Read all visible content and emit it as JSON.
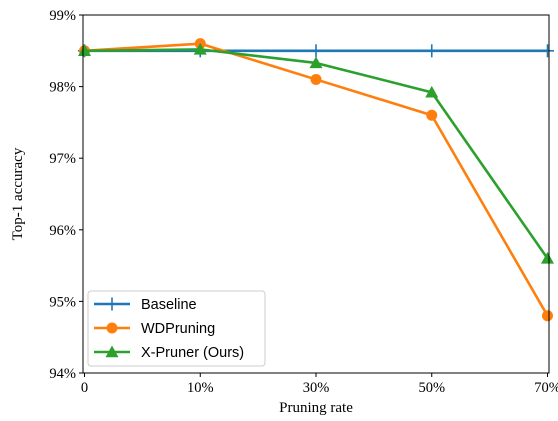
{
  "chart_data": {
    "type": "line",
    "xlabel": "Pruning rate",
    "ylabel": "Top-1 accuracy",
    "categories": [
      "0",
      "10%",
      "30%",
      "50%",
      "70%"
    ],
    "ylim": [
      94,
      99
    ],
    "yticks": [
      "94%",
      "95%",
      "96%",
      "97%",
      "98%",
      "99%"
    ],
    "grid": false,
    "legend_position": "lower-left",
    "series": [
      {
        "name": "Baseline",
        "values": [
          98.5,
          98.5,
          98.5,
          98.5,
          98.5
        ],
        "color": "#1f77b4",
        "marker": "plus"
      },
      {
        "name": "WDPruning",
        "values": [
          98.5,
          98.6,
          98.1,
          97.6,
          94.8
        ],
        "color": "#ff7f0e",
        "marker": "circle"
      },
      {
        "name": "X-Pruner (Ours)",
        "values": [
          98.5,
          98.52,
          98.33,
          97.92,
          95.6
        ],
        "color": "#2ca02c",
        "marker": "triangle"
      }
    ]
  }
}
